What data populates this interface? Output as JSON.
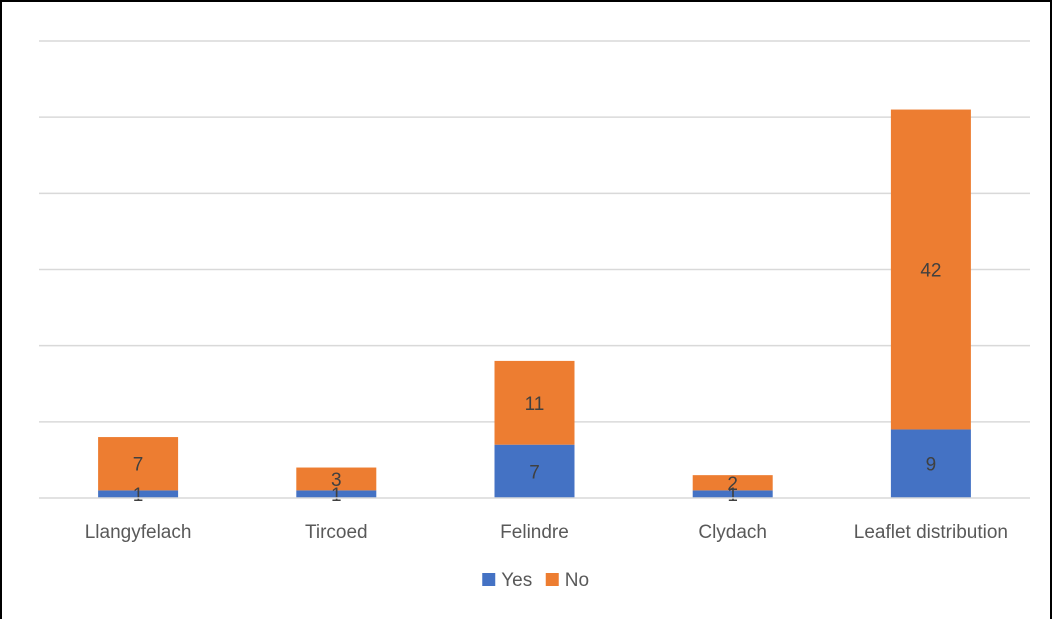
{
  "chart_data": {
    "type": "bar",
    "stacked": true,
    "categories": [
      "Llangyfelach",
      "Tircoed",
      "Felindre",
      "Clydach",
      "Leaflet distribution"
    ],
    "series": [
      {
        "name": "Yes",
        "values": [
          1,
          1,
          7,
          1,
          9
        ],
        "color": "#4472c4"
      },
      {
        "name": "No",
        "values": [
          7,
          3,
          11,
          2,
          42
        ],
        "color": "#ed7d31"
      }
    ],
    "ylim": [
      0,
      60
    ],
    "y_grid_step": 10,
    "grid": true,
    "y_tick_labels_shown": false,
    "legend_position": "bottom",
    "data_labels": true,
    "title": "",
    "xlabel": "",
    "ylabel": ""
  }
}
